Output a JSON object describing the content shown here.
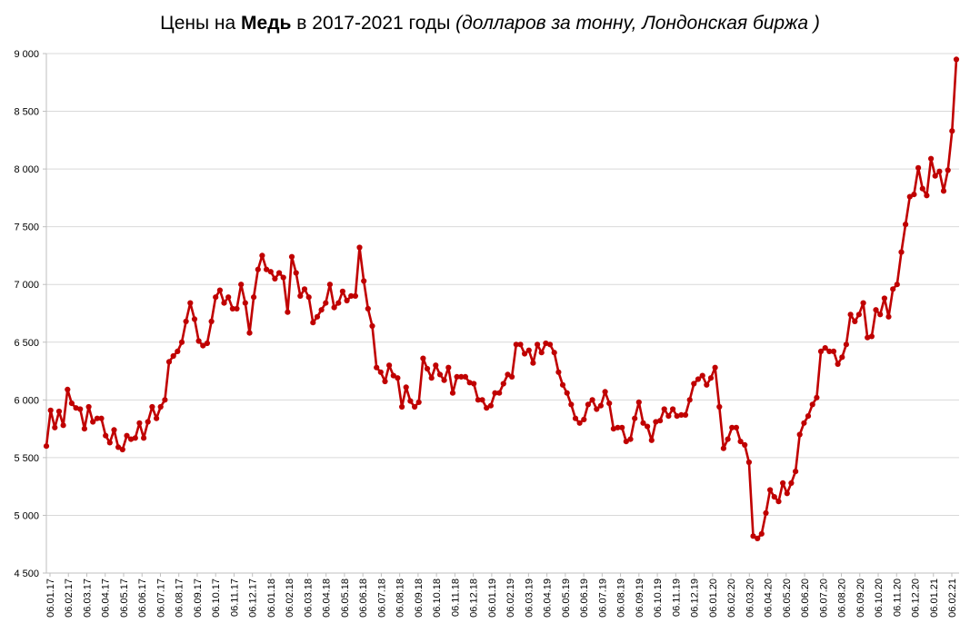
{
  "chart_data": {
    "type": "line",
    "title": {
      "part1": "Цены на ",
      "bold": "Медь",
      "part2": " в 2017-2021 годы ",
      "italic": "(долларов за тонну, Лондонская биржа )"
    },
    "xlabel": "",
    "ylabel": "",
    "ylim": [
      4500,
      9000
    ],
    "yticks": [
      4500,
      5000,
      5500,
      6000,
      6500,
      7000,
      7500,
      8000,
      8500,
      9000
    ],
    "ytick_labels": [
      "4 500",
      "5 000",
      "5 500",
      "6 000",
      "6 500",
      "7 000",
      "7 500",
      "8 000",
      "8 500",
      "9 000"
    ],
    "grid": true,
    "legend": "none",
    "xtick_labels": [
      "06.01.17",
      "06.02.17",
      "06.03.17",
      "06.04.17",
      "06.05.17",
      "06.06.17",
      "06.07.17",
      "06.08.17",
      "06.09.17",
      "06.10.17",
      "06.11.17",
      "06.12.17",
      "06.01.18",
      "06.02.18",
      "06.03.18",
      "06.04.18",
      "06.05.18",
      "06.06.18",
      "06.07.18",
      "06.08.18",
      "06.09.18",
      "06.10.18",
      "06.11.18",
      "06.12.18",
      "06.01.19",
      "06.02.19",
      "06.03.19",
      "06.04.19",
      "06.05.19",
      "06.06.19",
      "06.07.19",
      "06.08.19",
      "06.09.19",
      "06.10.19",
      "06.11.19",
      "06.12.19",
      "06.01.20",
      "06.02.20",
      "06.03.20",
      "06.04.20",
      "06.05.20",
      "06.06.20",
      "06.07.20",
      "06.08.20",
      "06.09.20",
      "06.10.20",
      "06.11.20",
      "06.12.20",
      "06.01.21",
      "06.02.21"
    ],
    "series": [
      {
        "color": "#c00000",
        "values": [
          5600,
          5910,
          5760,
          5900,
          5780,
          6090,
          5970,
          5930,
          5920,
          5750,
          5940,
          5810,
          5840,
          5840,
          5690,
          5630,
          5740,
          5590,
          5570,
          5690,
          5660,
          5670,
          5800,
          5670,
          5810,
          5940,
          5840,
          5940,
          6000,
          6330,
          6380,
          6420,
          6500,
          6680,
          6840,
          6700,
          6510,
          6470,
          6490,
          6680,
          6890,
          6950,
          6840,
          6890,
          6790,
          6790,
          7000,
          6840,
          6580,
          6890,
          7130,
          7250,
          7130,
          7110,
          7050,
          7100,
          7060,
          6760,
          7240,
          7100,
          6900,
          6960,
          6890,
          6670,
          6720,
          6780,
          6840,
          7000,
          6800,
          6840,
          6940,
          6860,
          6900,
          6900,
          7320,
          7030,
          6790,
          6640,
          6280,
          6240,
          6160,
          6300,
          6210,
          6190,
          5940,
          6110,
          5990,
          5940,
          5980,
          6360,
          6270,
          6190,
          6300,
          6220,
          6170,
          6280,
          6060,
          6200,
          6200,
          6200,
          6150,
          6140,
          6000,
          6000,
          5930,
          5950,
          6060,
          6060,
          6140,
          6220,
          6200,
          6480,
          6480,
          6400,
          6430,
          6320,
          6480,
          6410,
          6490,
          6480,
          6410,
          6240,
          6130,
          6060,
          5960,
          5840,
          5800,
          5830,
          5960,
          6000,
          5920,
          5950,
          6070,
          5970,
          5750,
          5760,
          5760,
          5640,
          5660,
          5840,
          5980,
          5800,
          5770,
          5650,
          5810,
          5820,
          5920,
          5860,
          5920,
          5860,
          5870,
          5870,
          6000,
          6140,
          6180,
          6210,
          6130,
          6190,
          6280,
          5940,
          5580,
          5660,
          5760,
          5760,
          5640,
          5610,
          5460,
          4820,
          4800,
          4840,
          5020,
          5220,
          5160,
          5120,
          5280,
          5190,
          5280,
          5380,
          5700,
          5800,
          5860,
          5960,
          6020,
          6420,
          6450,
          6420,
          6420,
          6310,
          6370,
          6480,
          6740,
          6680,
          6740,
          6840,
          6540,
          6550,
          6780,
          6740,
          6880,
          6720,
          6960,
          7000,
          7280,
          7520,
          7760,
          7780,
          8010,
          7830,
          7770,
          8090,
          7940,
          7980,
          7810,
          7990,
          8330,
          8950
        ]
      }
    ]
  }
}
